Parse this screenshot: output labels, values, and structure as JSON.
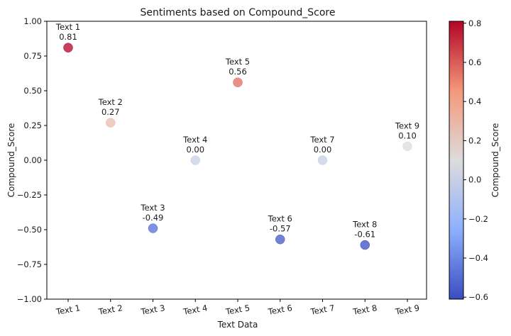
{
  "chart_data": {
    "type": "scatter",
    "title": "Sentiments based on Compound_Score",
    "xlabel": "Text Data",
    "ylabel": "Compound_Score",
    "categories": [
      "Text 1",
      "Text 2",
      "Text 3",
      "Text 4",
      "Text 5",
      "Text 6",
      "Text 7",
      "Text 8",
      "Text 9"
    ],
    "values": [
      0.81,
      0.27,
      -0.49,
      0.0,
      0.56,
      -0.57,
      0.0,
      -0.61,
      0.1
    ],
    "point_labels": [
      "0.81",
      "0.27",
      "-0.49",
      "0.00",
      "0.56",
      "-0.57",
      "0.00",
      "-0.61",
      "0.10"
    ],
    "ylim": [
      -1.0,
      1.0
    ],
    "yticks": [
      "1.00",
      "0.75",
      "0.50",
      "0.25",
      "0.00",
      "−0.25",
      "−0.50",
      "−0.75",
      "−1.00"
    ],
    "ytick_values": [
      1.0,
      0.75,
      0.5,
      0.25,
      0.0,
      -0.25,
      -0.5,
      -0.75,
      -1.0
    ],
    "grid": false,
    "colormap": "coolwarm",
    "colorbar": {
      "label": "Compound_Score",
      "range": [
        -0.61,
        0.81
      ],
      "ticks": [
        "0.8",
        "0.6",
        "0.4",
        "0.2",
        "0.0",
        "−0.2",
        "−0.4",
        "−0.6"
      ],
      "tick_values": [
        0.8,
        0.6,
        0.4,
        0.2,
        0.0,
        -0.2,
        -0.4,
        -0.6
      ]
    }
  }
}
